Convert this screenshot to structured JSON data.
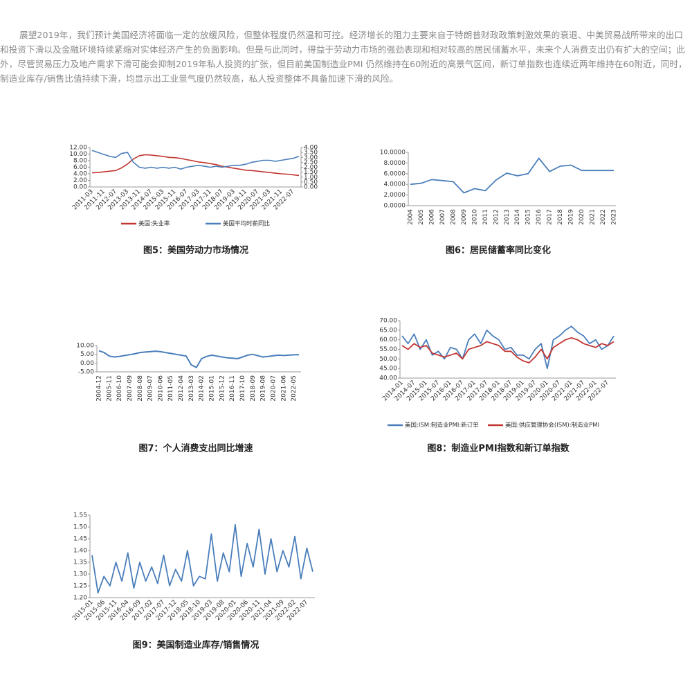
{
  "paragraph": "展望2019年，我们预计美国经济将面临一定的放缓风险，但整体程度仍然温和可控。经济增长的阻力主要来自于特朗普财政政策刺激效果的衰退、中美贸易战所带来的出口和投资下滑以及金融环境持续紧缩对实体经济产生的负面影响。但是与此同时，得益于劳动力市场的强劲表现和相对较高的居民储蓄水平，未来个人消费支出仍有扩大的空间；此外，尽管贸易压力及地产需求下滑可能会抑制2019年私人投资的扩张，但目前美国制造业PMI 仍然维持在60附近的高景气区间，新订单指数也连续近两年维持在60附近，同时，制造业库存/销售比值持续下滑，均显示出工业景气度仍然较高，私人投资整体不具备加速下滑的风险。",
  "chart_data": [
    {
      "type": "line",
      "caption": "图5：美国劳动力市场情况",
      "categories": [
        "2011-03",
        null,
        "2011-11",
        null,
        "2012-07",
        null,
        "2013-03",
        null,
        "2013-11",
        null,
        "2014-07",
        null,
        "2015-03",
        null,
        "2015-11",
        null,
        "2016-07",
        null,
        "2017-03",
        null,
        "2017-11",
        null,
        "2018-07",
        null,
        "2019-03",
        null,
        "2019-11",
        null,
        "2020-07",
        null,
        "2021-03",
        null,
        "2021-11",
        null,
        "2022-07",
        null
      ],
      "series": [
        {
          "name": "美国:失业率",
          "color": "#c23531",
          "values": [
            4.3,
            4.4,
            4.6,
            4.8,
            5.0,
            5.8,
            7.0,
            8.5,
            9.5,
            9.8,
            9.7,
            9.5,
            9.3,
            9.0,
            8.9,
            8.7,
            8.3,
            8.0,
            7.6,
            7.4,
            7.1,
            6.8,
            6.3,
            6.0,
            5.7,
            5.4,
            5.1,
            5.0,
            4.8,
            4.6,
            4.4,
            4.2,
            4.0,
            3.9,
            3.7,
            3.5
          ]
        },
        {
          "name": "美国平均时薪同比",
          "color": "#4a7ebb",
          "axis": "y2",
          "values": [
            3.7,
            3.5,
            3.3,
            3.1,
            3.0,
            3.4,
            3.5,
            2.5,
            2.0,
            1.9,
            2.0,
            1.9,
            2.0,
            1.9,
            2.0,
            1.8,
            2.0,
            2.1,
            2.2,
            2.1,
            2.0,
            2.1,
            2.0,
            2.1,
            2.2,
            2.2,
            2.3,
            2.5,
            2.6,
            2.7,
            2.7,
            2.6,
            2.7,
            2.8,
            2.9,
            3.1
          ]
        }
      ],
      "ylim": [
        0,
        12
      ],
      "yticks": [
        {
          "value": 0,
          "label": "0.00"
        },
        {
          "value": 2,
          "label": "2.00"
        },
        {
          "value": 4,
          "label": "4.00"
        },
        {
          "value": 6,
          "label": "6.00"
        },
        {
          "value": 8,
          "label": "8.00"
        },
        {
          "value": 10,
          "label": "10.00"
        },
        {
          "value": 12,
          "label": "12.00"
        }
      ],
      "y2lim": [
        0,
        4
      ],
      "y2ticks": [
        {
          "value": 0,
          "label": "0.00"
        },
        {
          "value": 0.5,
          "label": "0.50"
        },
        {
          "value": 1,
          "label": "1.00"
        },
        {
          "value": 1.5,
          "label": "1.50"
        },
        {
          "value": 2,
          "label": "2.00"
        },
        {
          "value": 2.5,
          "label": "2.50"
        },
        {
          "value": 3,
          "label": "3.00"
        },
        {
          "value": 3.5,
          "label": "3.50"
        },
        {
          "value": 4,
          "label": "4.00"
        }
      ],
      "legend": "bottom"
    },
    {
      "type": "line",
      "caption": "图6：居民储蓄率同比变化",
      "categories": [
        "2004",
        "2005",
        "2006",
        "2007",
        "2008",
        "2009",
        "2010",
        "2011",
        "2012",
        "2013",
        "2014",
        "2015",
        "2016",
        "2017",
        "2018",
        "2019",
        "2020",
        "2021",
        "2022",
        "2023"
      ],
      "values": [
        4.0,
        4.2,
        4.9,
        4.7,
        4.5,
        2.4,
        3.2,
        2.8,
        4.8,
        6.1,
        5.6,
        6.0,
        8.9,
        6.4,
        7.4,
        7.6,
        6.6,
        6.6,
        6.6,
        6.6
      ],
      "color": "#4a7ebb",
      "ylim": [
        0,
        10
      ],
      "yticks": [
        {
          "value": 0,
          "label": "0.0000"
        },
        {
          "value": 2,
          "label": "2.0000"
        },
        {
          "value": 4,
          "label": "4.0000"
        },
        {
          "value": 6,
          "label": "6.0000"
        },
        {
          "value": 8,
          "label": "8.0000"
        },
        {
          "value": 10,
          "label": "10.0000"
        }
      ]
    },
    {
      "type": "line",
      "caption": "图7：个人消费支出同比增速",
      "categories": [
        "2004-12",
        null,
        "2005-11",
        null,
        "2006-10",
        null,
        "2007-09",
        null,
        "2008-08",
        null,
        "2009-07",
        null,
        "2010-06",
        null,
        "2011-05",
        null,
        "2012-04",
        null,
        "2013-03",
        null,
        "2014-02",
        null,
        "2015-01",
        null,
        "2015-12",
        null,
        "2016-11",
        null,
        "2017-10",
        null,
        "2018-09",
        null,
        "2019-08",
        null,
        "2020-07",
        null,
        "2021-06",
        null,
        "2022-05",
        null
      ],
      "values": [
        7.0,
        6.0,
        4.0,
        3.5,
        3.8,
        4.3,
        4.8,
        5.3,
        6.0,
        6.3,
        6.5,
        6.8,
        6.5,
        6.0,
        5.5,
        5.0,
        4.5,
        4.0,
        -1.0,
        -2.5,
        2.5,
        3.8,
        4.5,
        4.0,
        3.5,
        3.0,
        2.8,
        2.5,
        3.5,
        4.5,
        5.0,
        4.2,
        3.5,
        3.8,
        4.2,
        4.5,
        4.3,
        4.5,
        4.7,
        4.8
      ],
      "color": "#4a7ebb",
      "ylim": [
        -5,
        10
      ],
      "yticks": [
        {
          "value": -5,
          "label": "-5.00"
        },
        {
          "value": 0,
          "label": "0.00"
        },
        {
          "value": 5,
          "label": "5.00"
        },
        {
          "value": 10,
          "label": "10.00"
        }
      ]
    },
    {
      "type": "line",
      "caption": "图8：制造业PMI指数和新订单指数",
      "categories": [
        "2014-01",
        null,
        "2014-07",
        null,
        "2015-01",
        null,
        "2015-07",
        null,
        "2016-01",
        null,
        "2016-07",
        null,
        "2017-01",
        null,
        "2017-07",
        null,
        "2018-01",
        null,
        "2018-07",
        null,
        "2019-01",
        null,
        "2019-07",
        null,
        "2020-01",
        null,
        "2020-07",
        null,
        "2021-01",
        null,
        "2021-07",
        null,
        "2022-01",
        null,
        "2022-07",
        null
      ],
      "series": [
        {
          "name": "美国:ISM:制造业PMI:新订单",
          "color": "#4a7ebb",
          "values": [
            62,
            58,
            63,
            55,
            60,
            52,
            54,
            50,
            56,
            55,
            50,
            60,
            63,
            58,
            65,
            62,
            60,
            55,
            56,
            52,
            52,
            50,
            55,
            58,
            45,
            60,
            62,
            65,
            67,
            64,
            62,
            58,
            60,
            55,
            57,
            62
          ]
        },
        {
          "name": "美国:供应管理协会(ISM):制造业PMI",
          "color": "#c23531",
          "values": [
            57,
            55,
            58,
            56,
            57,
            53,
            52,
            51,
            52,
            53,
            50,
            55,
            56,
            57,
            59,
            58,
            57,
            54,
            54,
            51,
            49,
            48,
            51,
            55,
            50,
            56,
            58,
            60,
            61,
            60,
            58,
            57,
            56,
            58,
            57,
            59
          ]
        }
      ],
      "ylim": [
        40,
        70
      ],
      "yticks": [
        {
          "value": 40,
          "label": "40.00"
        },
        {
          "value": 45,
          "label": "45.00"
        },
        {
          "value": 50,
          "label": "50.00"
        },
        {
          "value": 55,
          "label": "55.00"
        },
        {
          "value": 60,
          "label": "60.00"
        },
        {
          "value": 65,
          "label": "65.00"
        },
        {
          "value": 70,
          "label": "70.00"
        }
      ],
      "legend": "bottom"
    },
    {
      "type": "line",
      "caption": "图9：美国制造业库存/销售情况",
      "categories": [
        "2015-01",
        null,
        "2015-06",
        null,
        "2015-11",
        null,
        "2016-04",
        null,
        "2016-09",
        null,
        "2017-02",
        null,
        "2017-07",
        null,
        "2017-12",
        null,
        "2018-05",
        null,
        "2018-10",
        null,
        "2019-03",
        null,
        "2019-08",
        null,
        "2020-01",
        null,
        "2020-06",
        null,
        "2020-11",
        null,
        "2021-04",
        null,
        "2021-09",
        null,
        "2022-02",
        null,
        "2022-07",
        null
      ],
      "values": [
        1.38,
        1.22,
        1.29,
        1.25,
        1.35,
        1.27,
        1.39,
        1.24,
        1.35,
        1.27,
        1.33,
        1.26,
        1.38,
        1.25,
        1.32,
        1.27,
        1.4,
        1.25,
        1.29,
        1.28,
        1.47,
        1.27,
        1.39,
        1.31,
        1.51,
        1.29,
        1.43,
        1.33,
        1.49,
        1.3,
        1.45,
        1.31,
        1.4,
        1.33,
        1.46,
        1.28,
        1.41,
        1.31
      ],
      "color": "#4a7ebb",
      "ylim": [
        1.2,
        1.55
      ],
      "yticks": [
        {
          "value": 1.2,
          "label": "1.20"
        },
        {
          "value": 1.25,
          "label": "1.25"
        },
        {
          "value": 1.3,
          "label": "1.30"
        },
        {
          "value": 1.35,
          "label": "1.35"
        },
        {
          "value": 1.4,
          "label": "1.40"
        },
        {
          "value": 1.45,
          "label": "1.45"
        },
        {
          "value": 1.5,
          "label": "1.50"
        },
        {
          "value": 1.55,
          "label": "1.55"
        }
      ]
    }
  ]
}
